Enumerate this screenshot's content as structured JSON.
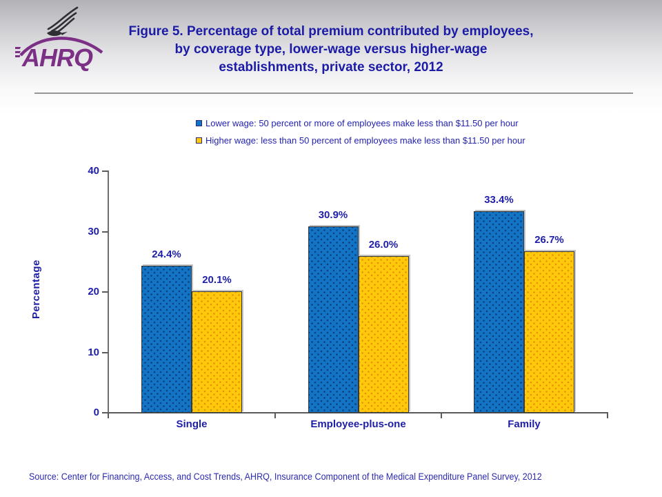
{
  "header": {
    "title": "Figure 5. Percentage of total premium contributed by employees, by coverage type, lower-wage versus higher-wage establishments, private sector, 2012",
    "logo_acronym": "AHRQ"
  },
  "legend": {
    "items": [
      {
        "label": "Lower wage: 50 percent or more of employees make less than $11.50 per hour",
        "color": "#1373C4"
      },
      {
        "label": "Higher wage: less than 50 percent of employees make less than $11.50 per hour",
        "color": "#FFC90B"
      }
    ]
  },
  "chart_data": {
    "type": "bar",
    "title": "Figure 5. Percentage of total premium contributed by employees, by coverage type, lower-wage versus higher-wage establishments, private sector, 2012",
    "categories": [
      "Single",
      "Employee-plus-one",
      "Family"
    ],
    "series": [
      {
        "name": "Lower wage: 50 percent or more of employees make less than $11.50 per hour",
        "color": "#1373C4",
        "values": [
          24.4,
          30.9,
          33.4
        ]
      },
      {
        "name": "Higher wage: less than 50 percent of employees make less than $11.50 per hour",
        "color": "#FFC90B",
        "values": [
          20.1,
          26.0,
          26.7
        ]
      }
    ],
    "value_labels": [
      [
        "24.4%",
        "30.9%",
        "33.4%"
      ],
      [
        "20.1%",
        "26.0%",
        "26.7%"
      ]
    ],
    "xlabel": "",
    "ylabel": "Percentage",
    "ylim": [
      0,
      40
    ],
    "yticks": [
      0,
      10,
      20,
      30,
      40
    ],
    "grid": false,
    "legend_position": "top"
  },
  "source": {
    "text": "Source: Center for Financing, Access, and Cost Trends, AHRQ, Insurance Component of the Medical Expenditure Panel Survey, 2012"
  },
  "colors": {
    "title_text": "#1b1ba6",
    "axis_text": "#1e1ea8",
    "logo_purple": "#7b2f85",
    "bar_blue": "#1373C4",
    "bar_yellow": "#FFC90B"
  }
}
